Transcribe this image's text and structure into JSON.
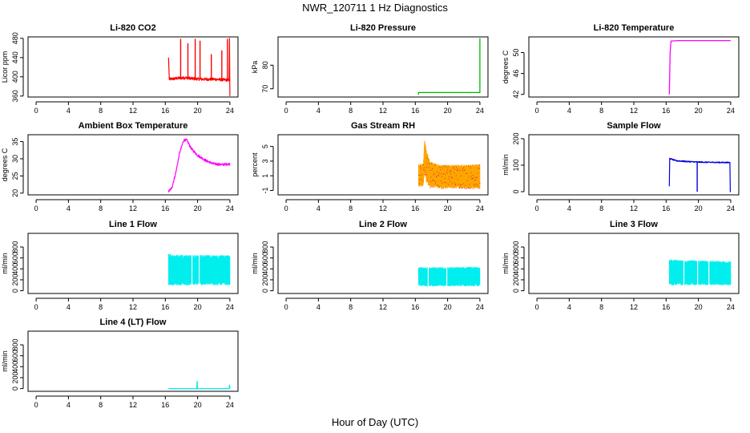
{
  "figure": {
    "title": "NWR_120711  1 Hz Diagnostics",
    "xlabel": "Hour of Day (UTC)"
  },
  "chart_data": [
    {
      "type": "line",
      "title": "Li-820 CO2",
      "ylabel": "Licor ppm",
      "color": "#ff0000",
      "xlim": [
        -1,
        25
      ],
      "ylim": [
        358,
        483
      ],
      "xticks": [
        0,
        4,
        8,
        12,
        16,
        20,
        24
      ],
      "yticks": [
        360,
        400,
        440,
        480
      ],
      "pattern": "noise",
      "data": {
        "x_start": 16.4,
        "x_end": 24.0,
        "start_points": [
          [
            16.4,
            440
          ],
          [
            16.5,
            395
          ]
        ],
        "baseline": [
          [
            16.5,
            395
          ],
          [
            17.5,
            397
          ],
          [
            18.5,
            398
          ],
          [
            19.5,
            396
          ],
          [
            20.5,
            395
          ],
          [
            22,
            395
          ],
          [
            23.9,
            393
          ]
        ],
        "noise": 3,
        "spikes": [
          [
            17.9,
            479
          ],
          [
            18.8,
            470
          ],
          [
            19.7,
            479
          ],
          [
            20.3,
            475
          ],
          [
            21.7,
            447
          ],
          [
            23.0,
            455
          ],
          [
            23.7,
            479
          ]
        ],
        "end_points": [
          [
            23.9,
            393
          ],
          [
            23.95,
            480
          ],
          [
            24.0,
            360
          ]
        ]
      }
    },
    {
      "type": "line",
      "title": "Li-820 Pressure",
      "ylabel": "kPa",
      "color": "#00bb00",
      "xlim": [
        -1,
        25
      ],
      "ylim": [
        66.5,
        92
      ],
      "xticks": [
        0,
        4,
        8,
        12,
        16,
        20,
        24
      ],
      "yticks": [
        70,
        80
      ],
      "pattern": "line",
      "data": {
        "points": [
          [
            16.4,
            67.5
          ],
          [
            16.4,
            68.4
          ],
          [
            24.0,
            68.4
          ],
          [
            24.0,
            91.5
          ]
        ]
      }
    },
    {
      "type": "line",
      "title": "Li-820 Temperature",
      "ylabel": "degrees C",
      "color": "#ff00ff",
      "xlim": [
        -1,
        25
      ],
      "ylim": [
        41.5,
        53
      ],
      "xticks": [
        0,
        4,
        8,
        12,
        16,
        20,
        24
      ],
      "yticks": [
        42,
        46,
        50
      ],
      "pattern": "line",
      "data": {
        "points": [
          [
            16.4,
            42
          ],
          [
            16.5,
            50
          ],
          [
            16.6,
            52.2
          ],
          [
            17.5,
            52.3
          ],
          [
            24.0,
            52.3
          ]
        ]
      }
    },
    {
      "type": "line",
      "title": "Ambient Box Temperature",
      "ylabel": "degrees C",
      "color": "#ff00ff",
      "xlim": [
        -1,
        25
      ],
      "ylim": [
        19.5,
        37
      ],
      "xticks": [
        0,
        4,
        8,
        12,
        16,
        20,
        24
      ],
      "yticks": [
        20,
        25,
        30,
        35
      ],
      "pattern": "noise",
      "data": {
        "x_start": 16.4,
        "x_end": 24.0,
        "baseline": [
          [
            16.4,
            20.5
          ],
          [
            16.8,
            21.5
          ],
          [
            17.3,
            26
          ],
          [
            17.8,
            32
          ],
          [
            18.3,
            35.5
          ],
          [
            18.7,
            35.3
          ],
          [
            19.2,
            33
          ],
          [
            20,
            31
          ],
          [
            21,
            29.5
          ],
          [
            22,
            28.5
          ],
          [
            23,
            28.3
          ],
          [
            24,
            28.5
          ]
        ],
        "noise": 0.35,
        "spikes": []
      }
    },
    {
      "type": "line",
      "title": "Gas Stream RH",
      "ylabel": "percent",
      "color": "#ffa500",
      "color2": "#d03030",
      "xlim": [
        -1,
        25
      ],
      "ylim": [
        -1.6,
        6.6
      ],
      "xticks": [
        0,
        4,
        8,
        12,
        16,
        20,
        24
      ],
      "yticks": [
        -1,
        1,
        3,
        5
      ],
      "pattern": "band",
      "data": {
        "x_start": 16.4,
        "x_end": 24.0,
        "band": [
          [
            16.4,
            -0.5,
            2.6
          ],
          [
            17.0,
            -0.4,
            2.7
          ],
          [
            17.15,
            1.5,
            6.0
          ],
          [
            17.4,
            0.0,
            4.5
          ],
          [
            17.8,
            -0.6,
            3.0
          ],
          [
            19,
            -0.7,
            2.5
          ],
          [
            21,
            -0.7,
            2.5
          ],
          [
            24,
            -0.8,
            2.6
          ]
        ]
      }
    },
    {
      "type": "line",
      "title": "Sample Flow",
      "ylabel": "ml/min",
      "color": "#0000dd",
      "xlim": [
        -1,
        25
      ],
      "ylim": [
        -12,
        215
      ],
      "xticks": [
        0,
        4,
        8,
        12,
        16,
        20,
        24
      ],
      "yticks": [
        0,
        100,
        200
      ],
      "pattern": "noise",
      "data": {
        "x_start": 16.4,
        "x_end": 23.9,
        "start_points": [
          [
            16.4,
            20
          ],
          [
            16.45,
            125
          ]
        ],
        "baseline": [
          [
            16.45,
            125
          ],
          [
            17.2,
            117
          ],
          [
            18.5,
            114
          ],
          [
            19.8,
            112
          ],
          [
            21,
            111
          ],
          [
            23.9,
            110
          ]
        ],
        "noise": 2,
        "dips": [
          [
            19.85,
            0
          ]
        ],
        "end_points": [
          [
            23.9,
            110
          ],
          [
            23.95,
            0
          ],
          [
            24.0,
            0
          ]
        ]
      }
    },
    {
      "type": "line",
      "title": "Line 1 Flow",
      "ylabel": "ml/min",
      "color": "#00eeee",
      "xlim": [
        -1,
        25
      ],
      "ylim": [
        -50,
        1050
      ],
      "xticks": [
        0,
        4,
        8,
        12,
        16,
        20,
        24
      ],
      "yticks": [
        0,
        200,
        400,
        600,
        800
      ],
      "pattern": "band",
      "data": {
        "x_start": 16.4,
        "x_end": 24.0,
        "band": [
          [
            16.4,
            100,
            680
          ],
          [
            17.0,
            100,
            660
          ],
          [
            24.0,
            100,
            650
          ]
        ],
        "gaps": [
          19.3,
          20.2
        ]
      }
    },
    {
      "type": "line",
      "title": "Line 2 Flow",
      "ylabel": "ml/min",
      "color": "#00eeee",
      "xlim": [
        -1,
        25
      ],
      "ylim": [
        -50,
        1050
      ],
      "xticks": [
        0,
        4,
        8,
        12,
        16,
        20,
        24
      ],
      "yticks": [
        0,
        200,
        400,
        600,
        800
      ],
      "pattern": "band",
      "data": {
        "x_start": 16.4,
        "x_end": 24.0,
        "band": [
          [
            16.4,
            80,
            430
          ],
          [
            24.0,
            80,
            440
          ]
        ],
        "gaps": [
          17.6,
          19.9
        ]
      }
    },
    {
      "type": "line",
      "title": "Line 3 Flow",
      "ylabel": "ml/min",
      "color": "#00eeee",
      "xlim": [
        -1,
        25
      ],
      "ylim": [
        -50,
        1050
      ],
      "xticks": [
        0,
        4,
        8,
        12,
        16,
        20,
        24
      ],
      "yticks": [
        0,
        200,
        400,
        600,
        800
      ],
      "pattern": "band",
      "data": {
        "x_start": 16.4,
        "x_end": 24.0,
        "band": [
          [
            16.4,
            100,
            570
          ],
          [
            24.0,
            100,
            540
          ]
        ],
        "gaps": [
          18.2,
          19.9,
          21.3
        ]
      }
    },
    {
      "type": "line",
      "title": "Line 4 (LT) Flow",
      "ylabel": "ml/min",
      "color": "#00eeee",
      "xlim": [
        -1,
        25
      ],
      "ylim": [
        -50,
        1050
      ],
      "xticks": [
        0,
        4,
        8,
        12,
        16,
        20,
        24
      ],
      "yticks": [
        0,
        200,
        400,
        600,
        800
      ],
      "pattern": "line",
      "data": {
        "points": [
          [
            16.4,
            0
          ],
          [
            19.9,
            0
          ],
          [
            19.95,
            140
          ],
          [
            20.0,
            0
          ],
          [
            23.9,
            0
          ],
          [
            23.95,
            70
          ],
          [
            24.0,
            0
          ]
        ]
      }
    }
  ]
}
